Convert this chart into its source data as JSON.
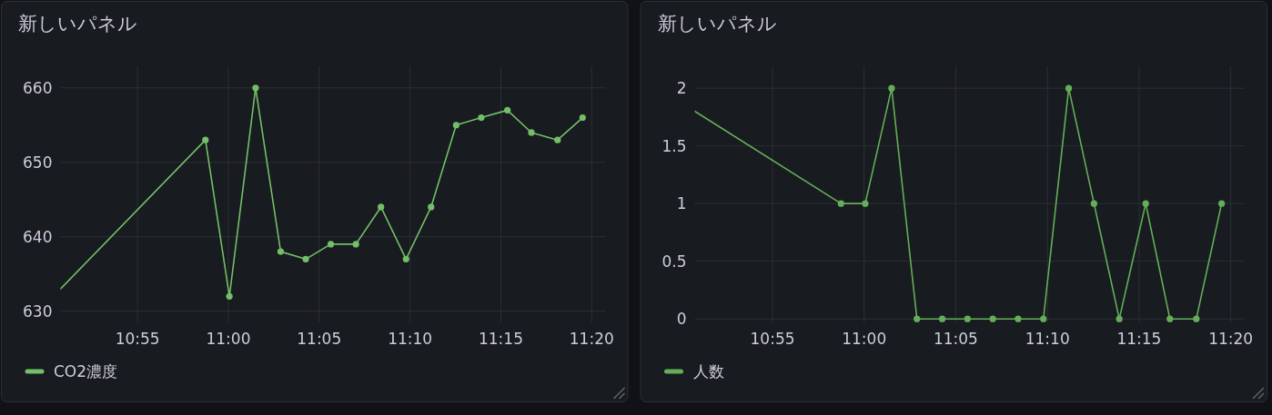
{
  "chart_data": [
    {
      "type": "line",
      "title": "新しいパネル",
      "x": [
        10.846,
        10.979,
        11.001,
        11.025,
        11.048,
        11.071,
        11.094,
        11.117,
        11.14,
        11.163,
        11.186,
        11.209,
        11.232,
        11.256,
        11.278,
        11.302,
        11.325
      ],
      "xlim": [
        10.846,
        11.346
      ],
      "xticks": [
        {
          "value": 10.9167,
          "label": "10:55"
        },
        {
          "value": 11,
          "label": "11:00"
        },
        {
          "value": 11.0833,
          "label": "11:05"
        },
        {
          "value": 11.1667,
          "label": "11:10"
        },
        {
          "value": 11.25,
          "label": "11:15"
        },
        {
          "value": 11.3333,
          "label": "11:20"
        }
      ],
      "ylim": [
        628.5,
        662.9
      ],
      "yticks": [
        630,
        640,
        650,
        660
      ],
      "grid": true,
      "legend": "bottom left",
      "marker": "circle",
      "series": [
        {
          "name": "CO2濃度",
          "color": "#73bf69",
          "values": [
            633,
            653,
            632,
            660,
            638,
            637,
            639,
            639,
            644,
            637,
            644,
            655,
            656,
            657,
            654,
            653,
            656
          ]
        }
      ]
    },
    {
      "type": "line",
      "title": "新しいパネル",
      "x": [
        10.846,
        10.979,
        11.001,
        11.025,
        11.048,
        11.071,
        11.094,
        11.117,
        11.14,
        11.163,
        11.186,
        11.209,
        11.232,
        11.256,
        11.278,
        11.302,
        11.325
      ],
      "xlim": [
        10.846,
        11.346
      ],
      "xticks": [
        {
          "value": 10.9167,
          "label": "10:55"
        },
        {
          "value": 11,
          "label": "11:00"
        },
        {
          "value": 11.0833,
          "label": "11:05"
        },
        {
          "value": 11.1667,
          "label": "11:10"
        },
        {
          "value": 11.25,
          "label": "11:15"
        },
        {
          "value": 11.3333,
          "label": "11:20"
        }
      ],
      "ylim": [
        -0.03,
        2.19
      ],
      "yticks": [
        0,
        0.5,
        1,
        1.5,
        2
      ],
      "grid": true,
      "legend": "bottom left",
      "marker": "circle",
      "series": [
        {
          "name": "人数",
          "color": "#64ae5a",
          "values": [
            1.8,
            1,
            1,
            2,
            0,
            0,
            0,
            0,
            0,
            0,
            2,
            1,
            0,
            1,
            0,
            0,
            1
          ]
        }
      ]
    }
  ]
}
